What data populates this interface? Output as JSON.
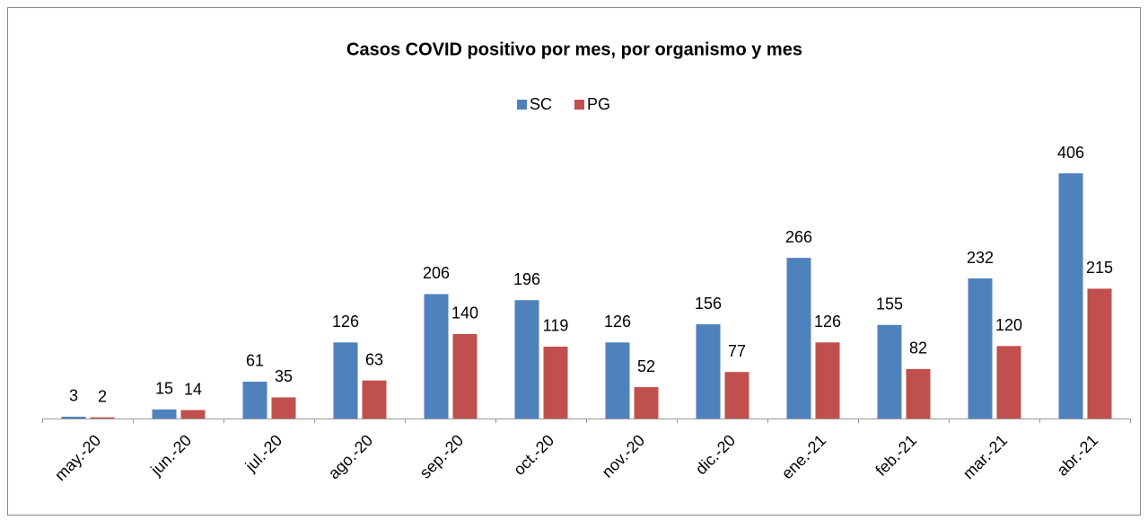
{
  "chart_data": {
    "type": "bar",
    "title": "Casos COVID positivo por mes,  por organismo y mes",
    "categories": [
      "may.-20",
      "jun.-20",
      "jul.-20",
      "ago.-20",
      "sep.-20",
      "oct.-20",
      "nov.-20",
      "dic.-20",
      "ene.-21",
      "feb.-21",
      "mar.-21",
      "abr.-21"
    ],
    "series": [
      {
        "name": "SC",
        "color": "#4f81bd",
        "values": [
          3,
          15,
          61,
          126,
          206,
          196,
          126,
          156,
          266,
          155,
          232,
          406
        ]
      },
      {
        "name": "PG",
        "color": "#c0504d",
        "values": [
          2,
          14,
          35,
          63,
          140,
          119,
          52,
          77,
          126,
          82,
          120,
          215
        ]
      }
    ]
  }
}
